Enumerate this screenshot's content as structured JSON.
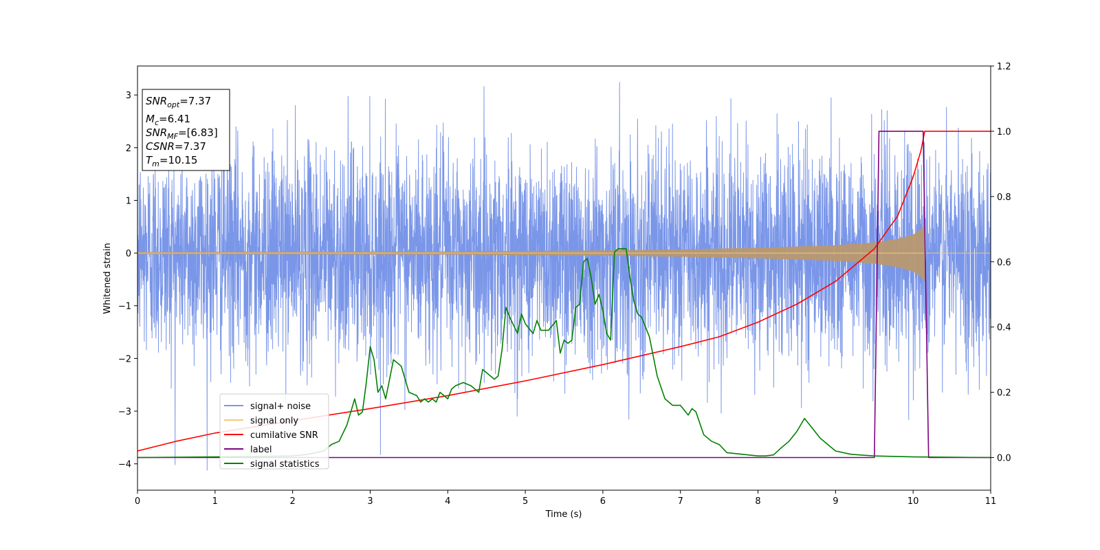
{
  "chart_data": {
    "type": "line",
    "xlabel": "Time (s)",
    "ylabel": "Whitened strain",
    "ylabel_right": "",
    "xlim": [
      0,
      11
    ],
    "ylim": [
      -4.5,
      3.55
    ],
    "ylim_right": [
      -0.1,
      1.2
    ],
    "xticks": [
      "0",
      "1",
      "2",
      "3",
      "4",
      "5",
      "6",
      "7",
      "8",
      "9",
      "10",
      "11"
    ],
    "yticks": [
      "−4",
      "−3",
      "−2",
      "−1",
      "0",
      "1",
      "2",
      "3"
    ],
    "yticks_right": [
      "0.0",
      "0.2",
      "0.4",
      "0.6",
      "0.8",
      "1.0",
      "1.2"
    ],
    "grid": false,
    "legend_position": "lower-left",
    "info_box": {
      "snr_opt": {
        "main": "SNR",
        "sub": "opt",
        "value": "=7.37"
      },
      "mc": {
        "main": "M",
        "sub": "c",
        "value": "=6.41"
      },
      "snr_mf": {
        "main": "SNR",
        "sub": "MF",
        "value": "=[6.83]"
      },
      "csnr": {
        "main": "CSNR",
        "value": "=7.37"
      },
      "tm": {
        "main": "T",
        "sub": "m",
        "value": "=10.15"
      }
    },
    "series": [
      {
        "name": "signal+ noise",
        "axis": "left",
        "color": "#7a96e8",
        "style": "dense noise, std ~1, range about −4.15 to 3.2 across 0–11 s"
      },
      {
        "name": "signal only",
        "axis": "left",
        "color": "#f5c87a",
        "style": "chirp envelope: amplitude 0.02 at t=0 growing to ~0.55 at t=10.15, then 0",
        "envelope": {
          "t": [
            0,
            2,
            4,
            6,
            7,
            8,
            9,
            9.5,
            9.8,
            10.0,
            10.1,
            10.15,
            10.16,
            11
          ],
          "amp": [
            0.02,
            0.025,
            0.03,
            0.05,
            0.07,
            0.1,
            0.15,
            0.2,
            0.27,
            0.35,
            0.45,
            0.55,
            0,
            0
          ]
        }
      },
      {
        "name": "cumilative SNR",
        "axis": "right",
        "color": "#ff0000",
        "x": [
          0,
          0.5,
          1,
          2,
          3,
          4,
          5,
          6,
          7,
          7.5,
          8,
          8.5,
          9,
          9.5,
          9.8,
          10.0,
          10.1,
          10.15,
          10.2,
          11
        ],
        "y": [
          0.02,
          0.05,
          0.075,
          0.113,
          0.15,
          0.19,
          0.235,
          0.285,
          0.34,
          0.37,
          0.415,
          0.47,
          0.54,
          0.64,
          0.74,
          0.86,
          0.94,
          1.0,
          1.0,
          1.0
        ]
      },
      {
        "name": "label",
        "axis": "right",
        "color": "#800080",
        "x": [
          0,
          9.5,
          9.56,
          10.13,
          10.2,
          11
        ],
        "y": [
          0,
          0,
          1.0,
          1.0,
          0,
          0
        ]
      },
      {
        "name": "signal statistics",
        "axis": "right",
        "color": "#008000",
        "x": [
          0,
          1,
          2,
          2.2,
          2.4,
          2.5,
          2.6,
          2.7,
          2.8,
          2.85,
          2.9,
          2.95,
          3.0,
          3.05,
          3.1,
          3.15,
          3.2,
          3.3,
          3.35,
          3.4,
          3.5,
          3.6,
          3.65,
          3.7,
          3.75,
          3.8,
          3.85,
          3.9,
          4.0,
          4.05,
          4.1,
          4.2,
          4.3,
          4.4,
          4.45,
          4.5,
          4.6,
          4.65,
          4.7,
          4.75,
          4.8,
          4.9,
          4.95,
          5.0,
          5.1,
          5.15,
          5.2,
          5.3,
          5.4,
          5.45,
          5.5,
          5.55,
          5.6,
          5.65,
          5.7,
          5.75,
          5.8,
          5.85,
          5.9,
          5.95,
          6.0,
          6.05,
          6.1,
          6.15,
          6.2,
          6.3,
          6.35,
          6.4,
          6.45,
          6.5,
          6.6,
          6.7,
          6.8,
          6.9,
          7.0,
          7.1,
          7.15,
          7.2,
          7.3,
          7.4,
          7.5,
          7.6,
          7.8,
          8.0,
          8.1,
          8.2,
          8.3,
          8.4,
          8.5,
          8.6,
          8.7,
          8.8,
          8.9,
          9.0,
          9.2,
          9.5,
          10.0,
          11
        ],
        "y": [
          0.0,
          0.002,
          0.005,
          0.01,
          0.02,
          0.04,
          0.05,
          0.1,
          0.18,
          0.13,
          0.14,
          0.23,
          0.34,
          0.3,
          0.2,
          0.22,
          0.18,
          0.3,
          0.29,
          0.28,
          0.2,
          0.19,
          0.17,
          0.18,
          0.17,
          0.18,
          0.17,
          0.2,
          0.18,
          0.21,
          0.22,
          0.23,
          0.22,
          0.2,
          0.27,
          0.26,
          0.24,
          0.25,
          0.33,
          0.46,
          0.43,
          0.38,
          0.44,
          0.41,
          0.38,
          0.42,
          0.39,
          0.39,
          0.42,
          0.32,
          0.36,
          0.35,
          0.36,
          0.46,
          0.47,
          0.6,
          0.61,
          0.55,
          0.47,
          0.5,
          0.45,
          0.38,
          0.36,
          0.63,
          0.64,
          0.64,
          0.55,
          0.48,
          0.44,
          0.43,
          0.37,
          0.25,
          0.18,
          0.16,
          0.16,
          0.13,
          0.15,
          0.14,
          0.07,
          0.05,
          0.04,
          0.015,
          0.01,
          0.005,
          0.005,
          0.008,
          0.03,
          0.05,
          0.08,
          0.12,
          0.09,
          0.06,
          0.04,
          0.02,
          0.01,
          0.005,
          0.002,
          0.0
        ]
      }
    ]
  }
}
